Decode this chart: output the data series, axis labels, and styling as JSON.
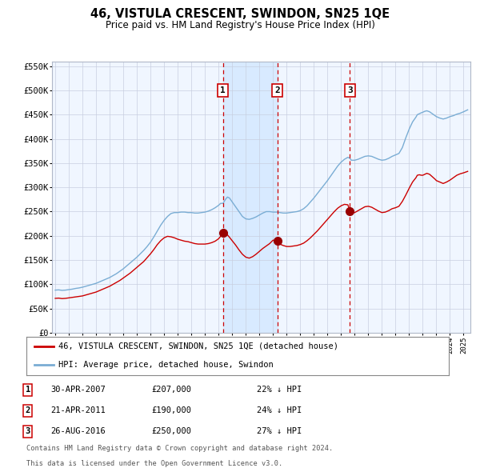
{
  "title": "46, VISTULA CRESCENT, SWINDON, SN25 1QE",
  "subtitle": "Price paid vs. HM Land Registry's House Price Index (HPI)",
  "legend_property": "46, VISTULA CRESCENT, SWINDON, SN25 1QE (detached house)",
  "legend_hpi": "HPI: Average price, detached house, Swindon",
  "footer_line1": "Contains HM Land Registry data © Crown copyright and database right 2024.",
  "footer_line2": "This data is licensed under the Open Government Licence v3.0.",
  "transactions": [
    {
      "num": 1,
      "price": 207000,
      "x_year": 2007.33
    },
    {
      "num": 2,
      "price": 190000,
      "x_year": 2011.31
    },
    {
      "num": 3,
      "price": 250000,
      "x_year": 2016.65
    }
  ],
  "table_rows": [
    {
      "num": 1,
      "date": "30-APR-2007",
      "price": "£207,000",
      "hpi": "22% ↓ HPI"
    },
    {
      "num": 2,
      "date": "21-APR-2011",
      "price": "£190,000",
      "hpi": "24% ↓ HPI"
    },
    {
      "num": 3,
      "date": "26-AUG-2016",
      "price": "£250,000",
      "hpi": "27% ↓ HPI"
    }
  ],
  "ylim": [
    0,
    560000
  ],
  "yticks": [
    0,
    50000,
    100000,
    150000,
    200000,
    250000,
    300000,
    350000,
    400000,
    450000,
    500000,
    550000
  ],
  "xlim_start": 1994.75,
  "xlim_end": 2025.5,
  "property_color": "#cc0000",
  "hpi_color": "#7aadd4",
  "plot_bg": "#f0f6ff",
  "grid_color": "#c8cfe0",
  "span_color": "#d8eaff"
}
